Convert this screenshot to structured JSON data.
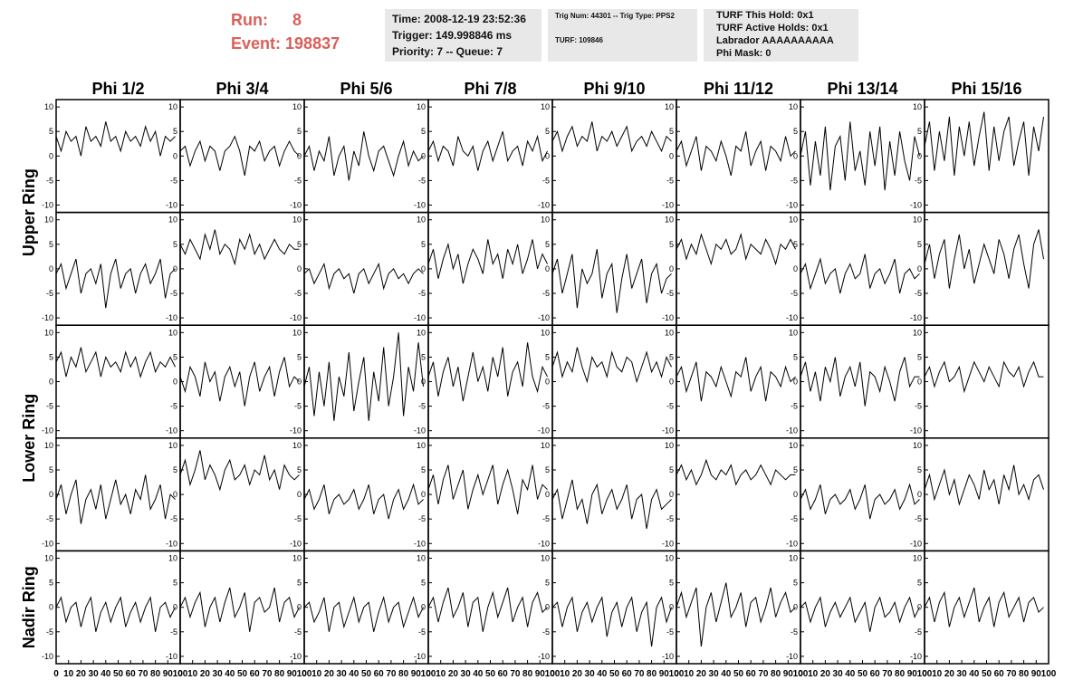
{
  "header": {
    "run_label": "Run:",
    "run": "8",
    "event_label": "Event:",
    "event": "198837",
    "box1": [
      "Time: 2008-12-19 23:52:36",
      "Trigger: 149.998846 ms",
      "Priority: 7 -- Queue: 7"
    ],
    "box2": [
      "Trig Num: 44301 -- Trig Type: PPS2",
      "TURF: 109846"
    ],
    "box3": [
      "TURF This Hold: 0x1",
      "TURF Active Holds: 0x1",
      "Labrador AAAAAAAAAA",
      "Phi Mask: 0"
    ]
  },
  "chart_data": {
    "type": "line",
    "color": "#000000",
    "column_titles": [
      "Phi 1/2",
      "Phi 3/4",
      "Phi 5/6",
      "Phi 7/8",
      "Phi 9/10",
      "Phi 11/12",
      "Phi 13/14",
      "Phi 15/16"
    ],
    "row_titles": [
      "Upper Ring",
      "Lower Ring",
      "Nadir Ring"
    ],
    "xlim": [
      0,
      100
    ],
    "xticks": [
      0,
      10,
      20,
      30,
      40,
      50,
      60,
      70,
      80,
      90,
      100
    ],
    "ylim": [
      -11.5,
      11.5
    ],
    "yticks": [
      -10,
      -5,
      0,
      5,
      10
    ],
    "x": [
      0,
      4,
      8,
      12,
      16,
      20,
      24,
      28,
      32,
      36,
      40,
      44,
      48,
      52,
      56,
      60,
      64,
      68,
      72,
      76,
      80,
      84,
      88,
      92,
      96
    ],
    "series": [
      {
        "values": [
          4,
          1,
          5,
          3,
          4,
          0,
          6,
          3,
          4,
          2,
          7,
          3,
          4,
          1,
          5,
          3,
          4,
          2,
          6,
          3,
          5,
          0,
          4,
          3,
          4
        ]
      },
      {
        "values": [
          1,
          2,
          -2,
          1,
          3,
          -1,
          2,
          1,
          -3,
          1,
          2,
          4,
          1,
          -4,
          2,
          1,
          3,
          -1,
          1,
          2,
          -2,
          1,
          3,
          1,
          0
        ]
      },
      {
        "values": [
          0,
          2,
          -3,
          1,
          -1,
          4,
          -4,
          0,
          2,
          -5,
          1,
          -2,
          5,
          0,
          -3,
          1,
          2,
          -1,
          -4,
          0,
          3,
          -2,
          1,
          -1,
          0
        ]
      },
      {
        "values": [
          1,
          3,
          -1,
          2,
          1,
          -2,
          4,
          1,
          0,
          2,
          -3,
          1,
          3,
          -1,
          2,
          5,
          -1,
          1,
          2,
          -2,
          3,
          1,
          4,
          -1,
          1
        ]
      },
      {
        "values": [
          3,
          5,
          1,
          4,
          6,
          2,
          4,
          3,
          7,
          1,
          4,
          3,
          5,
          2,
          4,
          6,
          1,
          3,
          4,
          2,
          5,
          3,
          1,
          4,
          3
        ]
      },
      {
        "values": [
          1,
          3,
          -2,
          1,
          4,
          -3,
          2,
          1,
          -1,
          3,
          0,
          -4,
          2,
          1,
          5,
          -2,
          1,
          3,
          -3,
          2,
          1,
          -1,
          4,
          0,
          1
        ]
      },
      {
        "values": [
          0,
          5,
          -6,
          3,
          -4,
          6,
          -7,
          2,
          4,
          -5,
          7,
          -3,
          1,
          -6,
          5,
          -2,
          6,
          -7,
          3,
          -4,
          5,
          -1,
          -5,
          4,
          0
        ]
      },
      {
        "values": [
          2,
          7,
          -3,
          5,
          -1,
          8,
          -4,
          6,
          0,
          7,
          -2,
          4,
          9,
          -3,
          6,
          -1,
          5,
          8,
          -2,
          3,
          7,
          -4,
          6,
          1,
          8
        ]
      },
      {
        "values": [
          -1,
          1,
          -4,
          -1,
          2,
          -5,
          -1,
          0,
          -3,
          1,
          -8,
          -1,
          2,
          -4,
          -1,
          0,
          -5,
          -1,
          1,
          -3,
          -1,
          2,
          -6,
          -1,
          0
        ]
      },
      {
        "values": [
          5,
          3,
          6,
          4,
          2,
          7,
          4,
          8,
          3,
          5,
          4,
          1,
          6,
          4,
          7,
          3,
          5,
          2,
          4,
          6,
          4,
          3,
          5,
          4,
          4
        ]
      },
      {
        "values": [
          -1,
          0,
          -3,
          -1,
          1,
          -4,
          -1,
          0,
          -2,
          -1,
          -5,
          -1,
          0,
          -3,
          -1,
          1,
          -4,
          -1,
          0,
          -2,
          -1,
          -3,
          -1,
          0,
          -1
        ]
      },
      {
        "values": [
          1,
          4,
          -2,
          2,
          5,
          0,
          3,
          -3,
          1,
          4,
          2,
          -1,
          6,
          1,
          3,
          -2,
          4,
          1,
          5,
          -1,
          2,
          6,
          0,
          3,
          1
        ]
      },
      {
        "values": [
          -1,
          2,
          -5,
          -1,
          3,
          -8,
          0,
          -3,
          -1,
          4,
          -6,
          -1,
          1,
          -9,
          -2,
          3,
          -4,
          -1,
          2,
          -7,
          -1,
          1,
          -5,
          -2,
          -1
        ]
      },
      {
        "values": [
          4,
          6,
          2,
          5,
          3,
          7,
          4,
          1,
          5,
          4,
          6,
          3,
          4,
          7,
          2,
          5,
          4,
          3,
          6,
          4,
          1,
          5,
          4,
          6,
          4
        ]
      },
      {
        "values": [
          -1,
          1,
          -4,
          -1,
          2,
          -3,
          -1,
          0,
          -5,
          -1,
          1,
          -2,
          -1,
          3,
          -4,
          -1,
          0,
          -3,
          -1,
          2,
          -5,
          -1,
          0,
          -2,
          -1
        ]
      },
      {
        "values": [
          1,
          5,
          -2,
          3,
          6,
          -4,
          2,
          7,
          0,
          4,
          -3,
          1,
          5,
          2,
          -1,
          6,
          3,
          -2,
          4,
          7,
          1,
          -4,
          5,
          8,
          2
        ]
      },
      {
        "values": [
          4,
          6,
          1,
          5,
          3,
          7,
          2,
          4,
          6,
          1,
          5,
          3,
          4,
          2,
          6,
          3,
          5,
          1,
          4,
          6,
          2,
          4,
          3,
          5,
          3
        ]
      },
      {
        "values": [
          1,
          -2,
          3,
          1,
          -3,
          4,
          0,
          2,
          -4,
          1,
          3,
          -1,
          2,
          -5,
          1,
          4,
          -2,
          1,
          3,
          -3,
          2,
          5,
          -1,
          1,
          0
        ]
      },
      {
        "values": [
          -1,
          3,
          -7,
          2,
          -5,
          4,
          -8,
          1,
          -3,
          6,
          -6,
          0,
          5,
          -8,
          2,
          -4,
          7,
          -5,
          1,
          10,
          -7,
          3,
          -2,
          8,
          -1
        ]
      },
      {
        "values": [
          1,
          4,
          -3,
          2,
          5,
          -1,
          3,
          -4,
          1,
          6,
          0,
          3,
          -2,
          5,
          1,
          7,
          -3,
          2,
          4,
          -1,
          8,
          1,
          -2,
          3,
          1
        ]
      },
      {
        "values": [
          3,
          6,
          1,
          4,
          2,
          7,
          3,
          0,
          5,
          3,
          4,
          1,
          6,
          3,
          2,
          5,
          4,
          0,
          3,
          6,
          2,
          4,
          1,
          5,
          3
        ]
      },
      {
        "values": [
          1,
          3,
          -2,
          1,
          4,
          -4,
          2,
          1,
          -1,
          3,
          0,
          -3,
          2,
          1,
          5,
          -2,
          1,
          3,
          -4,
          2,
          1,
          -1,
          3,
          0,
          1
        ]
      },
      {
        "values": [
          1,
          4,
          -2,
          2,
          -4,
          3,
          0,
          5,
          -3,
          1,
          3,
          -1,
          4,
          -5,
          2,
          1,
          -2,
          3,
          0,
          -4,
          2,
          5,
          -1,
          1,
          1
        ]
      },
      {
        "values": [
          1,
          3,
          -1,
          2,
          4,
          0,
          1,
          3,
          -2,
          1,
          4,
          2,
          0,
          3,
          1,
          -1,
          4,
          2,
          1,
          3,
          -1,
          2,
          4,
          1,
          1
        ]
      },
      {
        "values": [
          -1,
          2,
          -4,
          0,
          3,
          -6,
          -1,
          1,
          -3,
          2,
          -5,
          -1,
          3,
          -2,
          0,
          -4,
          1,
          -1,
          4,
          -3,
          -1,
          2,
          -5,
          0,
          -1
        ]
      },
      {
        "values": [
          4,
          7,
          2,
          5,
          9,
          3,
          6,
          4,
          1,
          5,
          7,
          3,
          4,
          6,
          2,
          5,
          4,
          8,
          3,
          5,
          1,
          6,
          4,
          3,
          4
        ]
      },
      {
        "values": [
          -1,
          1,
          -3,
          -1,
          2,
          -4,
          -1,
          0,
          -2,
          -1,
          1,
          -3,
          -1,
          2,
          -4,
          -1,
          0,
          -5,
          -1,
          1,
          -3,
          -1,
          2,
          -2,
          -1
        ]
      },
      {
        "values": [
          1,
          4,
          -2,
          3,
          6,
          -1,
          2,
          5,
          -3,
          1,
          4,
          0,
          3,
          6,
          -2,
          2,
          5,
          1,
          -4,
          3,
          1,
          6,
          -1,
          2,
          1
        ]
      },
      {
        "values": [
          -1,
          1,
          -5,
          -1,
          3,
          -3,
          -1,
          -6,
          0,
          2,
          -4,
          -1,
          1,
          -3,
          -1,
          2,
          -5,
          -1,
          0,
          -7,
          -1,
          1,
          -3,
          -2,
          -1
        ]
      },
      {
        "values": [
          4,
          6,
          3,
          5,
          2,
          4,
          7,
          4,
          3,
          5,
          4,
          6,
          2,
          4,
          5,
          3,
          4,
          6,
          4,
          2,
          5,
          4,
          3,
          4,
          4
        ]
      },
      {
        "values": [
          -1,
          1,
          -3,
          -1,
          2,
          -4,
          -1,
          0,
          -2,
          -1,
          1,
          -3,
          -1,
          2,
          -5,
          -1,
          0,
          -2,
          -1,
          1,
          -3,
          -1,
          2,
          -2,
          -1
        ]
      },
      {
        "values": [
          1,
          4,
          -1,
          2,
          5,
          0,
          3,
          -2,
          1,
          4,
          2,
          -1,
          5,
          1,
          3,
          -2,
          4,
          1,
          6,
          0,
          2,
          -1,
          3,
          4,
          1
        ]
      },
      {
        "values": [
          0,
          2,
          -3,
          0,
          1,
          -4,
          0,
          2,
          -5,
          -1,
          1,
          -3,
          0,
          2,
          -4,
          -1,
          1,
          -3,
          0,
          2,
          -5,
          0,
          1,
          -2,
          0
        ]
      },
      {
        "values": [
          0,
          2,
          -2,
          1,
          3,
          -4,
          0,
          2,
          -3,
          1,
          4,
          -2,
          0,
          3,
          -5,
          1,
          2,
          -1,
          0,
          4,
          -3,
          1,
          2,
          -2,
          0
        ]
      },
      {
        "values": [
          0,
          1,
          -3,
          -1,
          2,
          -5,
          0,
          1,
          -4,
          -1,
          2,
          -3,
          0,
          1,
          -5,
          -1,
          2,
          -3,
          0,
          1,
          -4,
          -1,
          2,
          -2,
          0
        ]
      },
      {
        "values": [
          0,
          2,
          -3,
          1,
          4,
          -2,
          0,
          3,
          -4,
          1,
          2,
          -5,
          0,
          3,
          -2,
          1,
          4,
          -3,
          0,
          2,
          -4,
          1,
          3,
          -1,
          0
        ]
      },
      {
        "values": [
          0,
          1,
          -4,
          0,
          2,
          -5,
          -1,
          1,
          -3,
          0,
          2,
          -6,
          -1,
          1,
          -4,
          0,
          2,
          -5,
          -1,
          1,
          -8,
          0,
          2,
          -3,
          0
        ]
      },
      {
        "values": [
          0,
          3,
          -2,
          1,
          4,
          -8,
          0,
          3,
          -3,
          1,
          5,
          -2,
          0,
          3,
          -4,
          1,
          2,
          -3,
          0,
          4,
          -2,
          1,
          3,
          -1,
          0
        ]
      },
      {
        "values": [
          0,
          1,
          -3,
          0,
          2,
          -4,
          -1,
          1,
          -2,
          0,
          2,
          -3,
          -1,
          1,
          -5,
          0,
          2,
          -2,
          -1,
          1,
          -3,
          0,
          2,
          -2,
          0
        ]
      },
      {
        "values": [
          0,
          2,
          -3,
          1,
          3,
          -4,
          0,
          2,
          -2,
          1,
          4,
          -3,
          0,
          2,
          -4,
          1,
          3,
          -2,
          0,
          2,
          -3,
          1,
          2,
          -1,
          0
        ]
      }
    ]
  }
}
